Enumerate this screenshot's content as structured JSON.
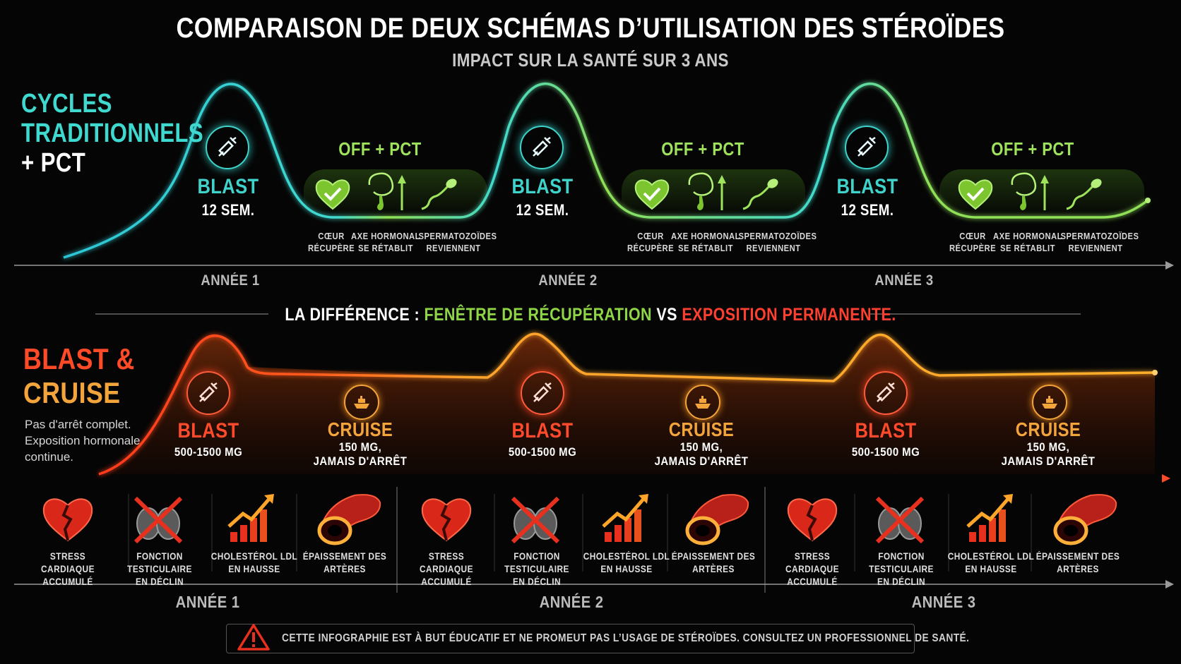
{
  "header": {
    "title": "COMPARAISON DE DEUX SCHÉMAS D’UTILISATION DES STÉROÏDES",
    "subtitle": "IMPACT SUR LA SANTÉ SUR 3 ANS"
  },
  "traditional": {
    "title_line1": "CYCLES",
    "title_line2": "TRADITIONNELS",
    "title_line3": "+ PCT",
    "cycles": [
      {
        "blast": "BLAST",
        "duration": "12 SEM.",
        "off": "OFF + PCT",
        "benefits": [
          [
            "CŒUR",
            "RÉCUPÈRE"
          ],
          [
            "AXE HORMONAL",
            "SE RÉTABLIT"
          ],
          [
            "SPERMATOZOÏDES",
            "REVIENNENT"
          ]
        ]
      },
      {
        "blast": "BLAST",
        "duration": "12 SEM.",
        "off": "OFF + PCT",
        "benefits": [
          [
            "CŒUR",
            "RÉCUPÈRE"
          ],
          [
            "AXE HORMONAL",
            "SE RÉTABLIT"
          ],
          [
            "SPERMATOZOÏDES",
            "REVIENNENT"
          ]
        ]
      },
      {
        "blast": "BLAST",
        "duration": "12 SEM.",
        "off": "OFF + PCT",
        "benefits": [
          [
            "CŒUR",
            "RÉCUPÈRE"
          ],
          [
            "AXE HORMONAL",
            "SE RÉTABLIT"
          ],
          [
            "SPERMATOZOÏDES",
            "REVIENNENT"
          ]
        ]
      }
    ],
    "years": [
      "ANNÉE 1",
      "ANNÉE 2",
      "ANNÉE 3"
    ]
  },
  "difference": {
    "prefix": "LA DIFFÉRENCE : ",
    "green": "FENÊTRE DE RÉCUPÉRATION",
    "vs": " VS ",
    "red": "EXPOSITION PERMANENTE."
  },
  "blast_cruise": {
    "title_line1": "BLAST &",
    "title_line2": "CRUISE",
    "desc_line1": "Pas d'arrêt complet.",
    "desc_line2": "Exposition hormonale",
    "desc_line3": "continue.",
    "cycles": [
      {
        "blast": "BLAST",
        "blast_dose": "500-1500 MG",
        "cruise": "CRUISE",
        "cruise_dose1": "150 MG,",
        "cruise_dose2": "JAMAIS D'ARRÊT"
      },
      {
        "blast": "BLAST",
        "blast_dose": "500-1500 MG",
        "cruise": "CRUISE",
        "cruise_dose1": "150 MG,",
        "cruise_dose2": "JAMAIS D'ARRÊT"
      },
      {
        "blast": "BLAST",
        "blast_dose": "500-1500 MG",
        "cruise": "CRUISE",
        "cruise_dose1": "150 MG,",
        "cruise_dose2": "JAMAIS D'ARRÊT"
      }
    ],
    "risks": [
      [
        "STRESS CARDIAQUE",
        "ACCUMULÉ"
      ],
      [
        "FONCTION TESTICULAIRE",
        "EN DÉCLIN"
      ],
      [
        "CHOLESTÉROL LDL",
        "EN HAUSSE"
      ],
      [
        "ÉPAISSEMENT DES",
        "ARTÈRES"
      ]
    ],
    "years": [
      "ANNÉE 1",
      "ANNÉE 2",
      "ANNÉE 3"
    ]
  },
  "disclaimer": "CETTE INFOGRAPHIE EST À BUT ÉDUCATIF ET NE PROMEUT PAS L’USAGE DE STÉROÏDES. CONSULTEZ UN PROFESSIONNEL DE SANTÉ.",
  "colors": {
    "teal": "#3fd3cc",
    "green": "#9fe35c",
    "red": "#ff4b2b",
    "orange": "#f3a43a"
  },
  "icons": [
    "syringe-icon",
    "heart-check-icon",
    "hormone-axis-icon",
    "sperm-icon",
    "ship-icon",
    "broken-heart-icon",
    "crossed-testicles-icon",
    "rising-bars-icon",
    "artery-icon",
    "warning-icon"
  ]
}
